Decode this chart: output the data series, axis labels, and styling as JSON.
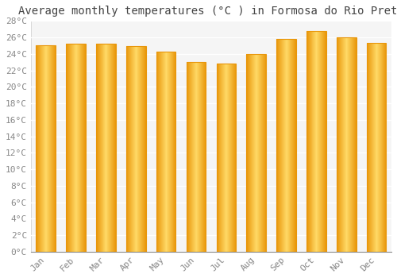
{
  "title": "Average monthly temperatures (°C ) in Formosa do Rio Preto",
  "months": [
    "Jan",
    "Feb",
    "Mar",
    "Apr",
    "May",
    "Jun",
    "Jul",
    "Aug",
    "Sep",
    "Oct",
    "Nov",
    "Dec"
  ],
  "temperatures": [
    25.0,
    25.2,
    25.2,
    24.9,
    24.3,
    23.0,
    22.8,
    24.0,
    25.8,
    26.8,
    26.0,
    25.3
  ],
  "bar_color_center": "#FFD966",
  "bar_color_edge": "#E8960A",
  "ylim": [
    0,
    28
  ],
  "ytick_step": 2,
  "plot_bg_color": "#f5f5f5",
  "fig_bg_color": "#ffffff",
  "grid_color": "#ffffff",
  "title_fontsize": 10,
  "tick_fontsize": 8,
  "bar_width": 0.65
}
